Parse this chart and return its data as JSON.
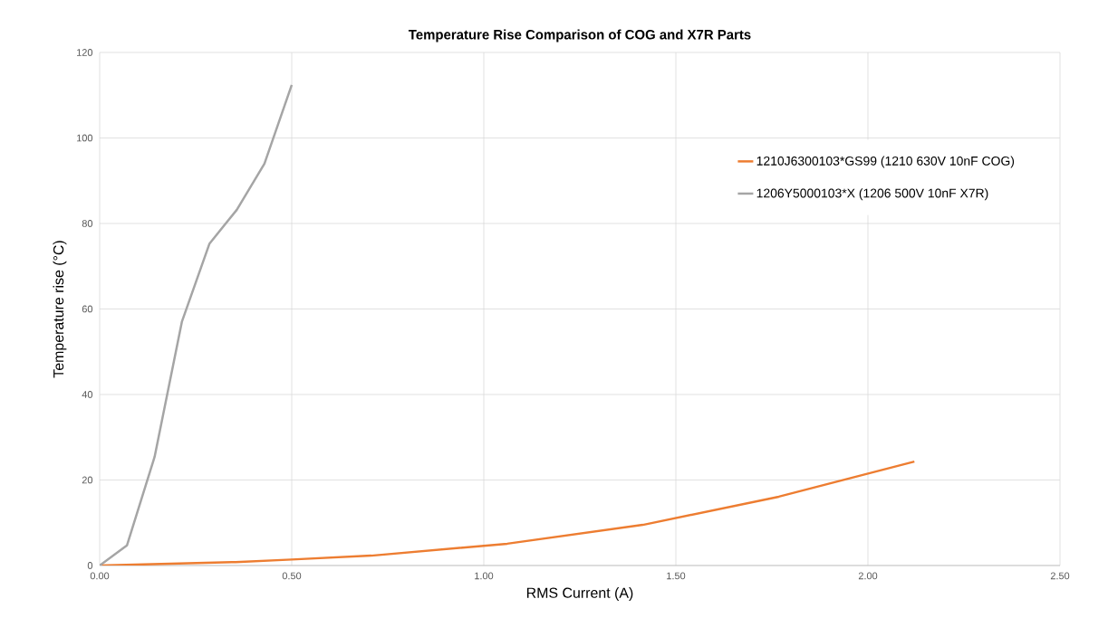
{
  "chart_data": {
    "type": "line",
    "title": "**Temperature Rise Comparison of COG and X7R Parts**",
    "xlabel": "RMS Current (A)",
    "ylabel": "Temperature rise (°C)",
    "series": [
      {
        "name": "1210J6300103*GS99 (1210 630V 10nF COG)",
        "color": "#ed7d31",
        "x": [
          0,
          0.354,
          0.5,
          0.707,
          1.061,
          1.414,
          1.768,
          2.121
        ],
        "values": [
          0,
          0.8,
          1.4,
          2.3,
          5.1,
          9.5,
          16.1,
          24.3
        ]
      },
      {
        "name": "1206Y5000103*X (1206 500V 10nF X7R)",
        "color": "#a5a5a5",
        "x": [
          0,
          0.071,
          0.143,
          0.214,
          0.286,
          0.357,
          0.429,
          0.5
        ],
        "values": [
          0,
          4.7,
          25.4,
          57,
          75.3,
          83.2,
          94,
          112.4
        ]
      }
    ],
    "xlim": [
      0,
      2.5
    ],
    "ylim": [
      0,
      120
    ],
    "xticks": [
      {
        "value": 0,
        "label": "0.00"
      },
      {
        "value": 0.5,
        "label": "0.50"
      },
      {
        "value": 1,
        "label": "1.00"
      },
      {
        "value": 1.5,
        "label": "1.50"
      },
      {
        "value": 2,
        "label": "2.00"
      },
      {
        "value": 2.5,
        "label": "2.50"
      }
    ],
    "yticks": [
      0,
      20,
      40,
      60,
      80,
      100,
      120
    ],
    "grid": true,
    "legend": "top right",
    "marker": "none",
    "line_style": "solid"
  }
}
